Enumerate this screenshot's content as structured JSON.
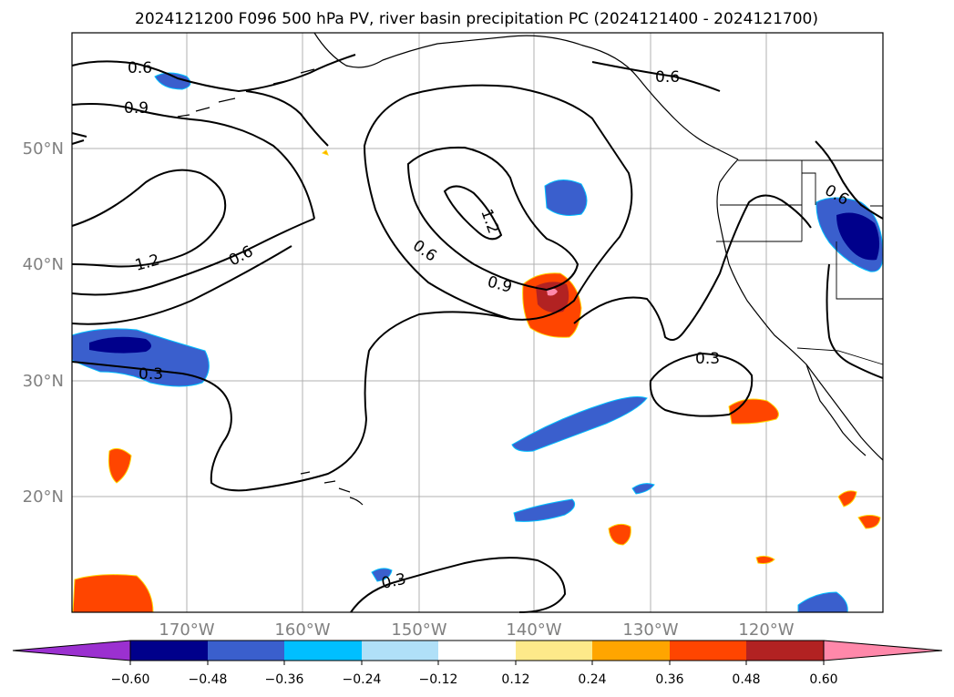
{
  "title": "2024121200 F096 500 hPa PV, river basin precipitation PC (2024121400 - 2024121700)",
  "axes": {
    "lat_labels": [
      "50°N",
      "40°N",
      "30°N",
      "20°N"
    ],
    "lon_labels": [
      "170°W",
      "160°W",
      "150°W",
      "140°W",
      "130°W",
      "120°W"
    ]
  },
  "contour_labels": [
    "0.6",
    "0.9",
    "0.6",
    "0.6",
    "1.2",
    "0.6",
    "0.6",
    "1.2",
    "0.9",
    "0.3",
    "0.3",
    "0.3"
  ],
  "colorbar": {
    "tick_labels": [
      "−0.60",
      "−0.48",
      "−0.36",
      "−0.24",
      "−0.12",
      "0.12",
      "0.24",
      "0.36",
      "0.48",
      "0.60"
    ],
    "colors": [
      "#9b30d0",
      "#00008b",
      "#3a5fcd",
      "#00bfff",
      "#b0e0f8",
      "#ffffff",
      "#fde98a",
      "#ffa500",
      "#ff4500",
      "#b22222",
      "#ff88aa"
    ]
  },
  "map_colors": {
    "ocean": "#ffffff",
    "coastline": "#000000",
    "grid": "#aaaaaa",
    "tick_label_color": "#808080"
  }
}
